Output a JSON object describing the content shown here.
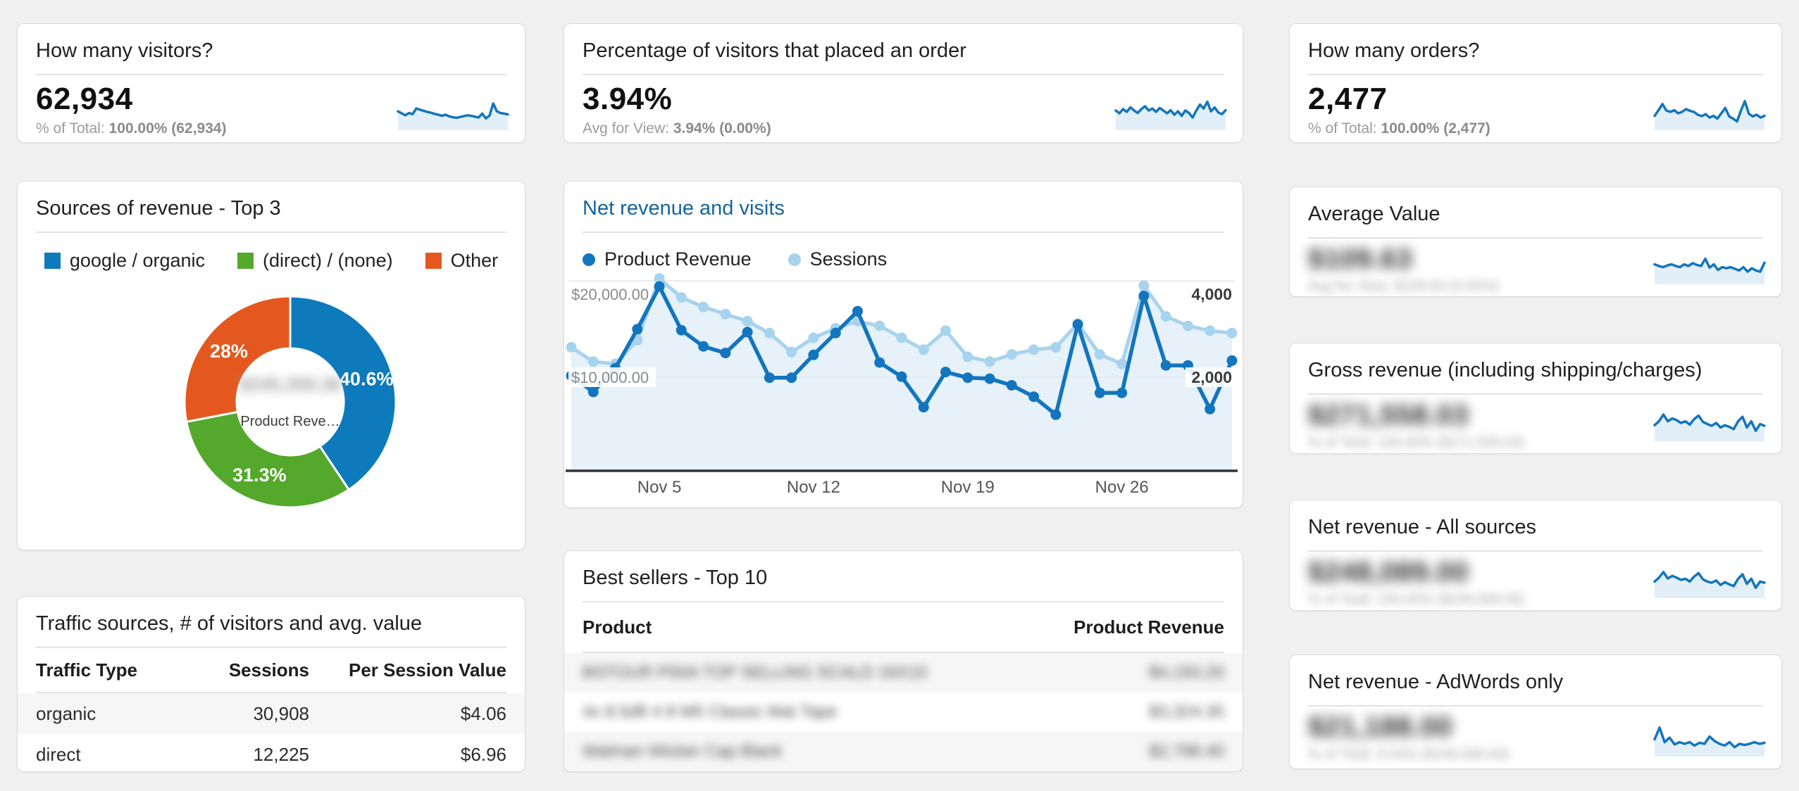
{
  "colors": {
    "background": "#f0f0f0",
    "accent_blue": "#1375bd",
    "light_blue": "#a7d3ed",
    "area_fill": "#ddecf7",
    "link_blue": "#15659d",
    "green": "#54a82b",
    "orange": "#e4581f"
  },
  "cards": {
    "visitors": {
      "title": "How many visitors?",
      "value": "62,934",
      "sub_label": "% of Total:",
      "sub_bold": "100.00% (62,934)",
      "sparkline": [
        0.52,
        0.45,
        0.38,
        0.46,
        0.42,
        0.62,
        0.58,
        0.54,
        0.5,
        0.47,
        0.43,
        0.4,
        0.36,
        0.4,
        0.34,
        0.31,
        0.29,
        0.32,
        0.35,
        0.38,
        0.36,
        0.33,
        0.3,
        0.44,
        0.27,
        0.37,
        0.8,
        0.52,
        0.46,
        0.44,
        0.41
      ]
    },
    "pct_order": {
      "title": "Percentage of visitors that placed an order",
      "value": "3.94%",
      "sub_label": "Avg for View:",
      "sub_bold": "3.94% (0.00%)",
      "sparkline": [
        0.55,
        0.45,
        0.6,
        0.5,
        0.66,
        0.55,
        0.46,
        0.6,
        0.7,
        0.55,
        0.62,
        0.5,
        0.64,
        0.55,
        0.45,
        0.56,
        0.4,
        0.52,
        0.36,
        0.55,
        0.46,
        0.3,
        0.55,
        0.76,
        0.62,
        0.86,
        0.52,
        0.66,
        0.48,
        0.42,
        0.56
      ]
    },
    "orders": {
      "title": "How many orders?",
      "value": "2,477",
      "sub_label": "% of Total:",
      "sub_bold": "100.00% (2,477)",
      "sparkline": [
        0.36,
        0.56,
        0.78,
        0.55,
        0.5,
        0.56,
        0.45,
        0.5,
        0.6,
        0.54,
        0.5,
        0.4,
        0.35,
        0.42,
        0.3,
        0.36,
        0.26,
        0.45,
        0.64,
        0.34,
        0.26,
        0.16,
        0.55,
        0.88,
        0.44,
        0.34,
        0.4,
        0.3,
        0.36
      ]
    },
    "avg_value": {
      "title": "Average Value",
      "blurred": true,
      "value_blurred": "$109.63",
      "sub_blurred": "Avg for View: $109.63 (0.00%)",
      "sparkline": [
        0.56,
        0.5,
        0.46,
        0.52,
        0.56,
        0.5,
        0.46,
        0.56,
        0.5,
        0.6,
        0.54,
        0.5,
        0.76,
        0.44,
        0.56,
        0.36,
        0.46,
        0.42,
        0.46,
        0.4,
        0.34,
        0.46,
        0.3,
        0.42,
        0.34,
        0.3,
        0.62
      ]
    },
    "gross": {
      "title": "Gross revenue (including shipping/charges)",
      "blurred": true,
      "value_blurred": "$271,558.03",
      "sub_blurred": "% of Total: 100.00% ($271,558.03)",
      "sparkline": [
        0.42,
        0.56,
        0.8,
        0.56,
        0.66,
        0.6,
        0.5,
        0.56,
        0.44,
        0.64,
        0.76,
        0.54,
        0.46,
        0.4,
        0.5,
        0.34,
        0.42,
        0.36,
        0.28,
        0.56,
        0.72,
        0.34,
        0.56,
        0.22,
        0.46,
        0.4
      ]
    },
    "net_all": {
      "title": "Net revenue - All sources",
      "blurred": true,
      "value_blurred": "$248,089.00",
      "sub_blurred": "% of Total: 100.00% ($248,089.00)",
      "sparkline": [
        0.44,
        0.58,
        0.78,
        0.55,
        0.64,
        0.58,
        0.5,
        0.54,
        0.44,
        0.62,
        0.74,
        0.52,
        0.44,
        0.4,
        0.48,
        0.32,
        0.42,
        0.34,
        0.28,
        0.54,
        0.7,
        0.36,
        0.54,
        0.22,
        0.44,
        0.4
      ]
    },
    "net_adwords": {
      "title": "Net revenue - AdWords only",
      "blurred": true,
      "value_blurred": "$21,188.00",
      "sub_blurred": "% of Total: 8.54% ($248,089.00)",
      "sparkline": [
        0.46,
        0.88,
        0.36,
        0.52,
        0.28,
        0.36,
        0.3,
        0.36,
        0.24,
        0.34,
        0.3,
        0.56,
        0.4,
        0.3,
        0.24,
        0.36,
        0.18,
        0.3,
        0.26,
        0.3,
        0.36,
        0.3,
        0.34
      ]
    }
  },
  "donut_card": {
    "title": "Sources of revenue - Top 3",
    "legend": [
      {
        "label": "google / organic",
        "color": "#0d7abc"
      },
      {
        "label": "(direct) / (none)",
        "color": "#54a82b"
      },
      {
        "label": "Other",
        "color": "#e4581f"
      }
    ],
    "center_value_blurred": "$245,359.38",
    "center_label": "Product Reve…"
  },
  "main_chart_card": {
    "title": "Net revenue and visits",
    "legend": [
      {
        "label": "Product Revenue",
        "color": "#1375bd"
      },
      {
        "label": "Sessions",
        "color": "#a7d3ed"
      }
    ]
  },
  "traffic_card": {
    "title": "Traffic sources, # of visitors and avg. value",
    "headers": [
      "Traffic Type",
      "Sessions",
      "Per Session Value"
    ],
    "rows": [
      [
        "organic",
        "30,908",
        "$4.06"
      ],
      [
        "direct",
        "12,225",
        "$6.96"
      ]
    ]
  },
  "best_sellers_card": {
    "title": "Best sellers - Top 10",
    "headers": [
      "Product",
      "Product Revenue"
    ],
    "blurred": true,
    "rows_blurred": [
      [
        "BSTOUR P50A TOP SELLING SCALD 16X10",
        "$4,193.20"
      ],
      [
        "4x 8.5dft 4 8 M5 Classic Mat Tape",
        "$3,324.35"
      ],
      [
        "Walman Wicker Cap Black",
        "$2,798.40"
      ]
    ]
  },
  "chart_data": [
    {
      "type": "pie",
      "title": "Sources of revenue - Top 3",
      "labels": [
        "google / organic",
        "(direct) / (none)",
        "Other"
      ],
      "values": [
        40.6,
        31.3,
        28.0
      ],
      "value_labels": [
        "40.6%",
        "31.3%",
        "28%"
      ],
      "colors": [
        "#0d7abc",
        "#54a82b",
        "#e4581f"
      ],
      "donut": true,
      "center_metric": "Product Revenue"
    },
    {
      "type": "line",
      "title": "Net revenue and visits",
      "x_range": "Nov 1 - Dec 1",
      "x_ticks": [
        {
          "i": 4,
          "label": "Nov 5"
        },
        {
          "i": 11,
          "label": "Nov 12"
        },
        {
          "i": 18,
          "label": "Nov 19"
        },
        {
          "i": 25,
          "label": "Nov 26"
        }
      ],
      "ylim_left": [
        0,
        20000
      ],
      "ylim_right": [
        0,
        4000
      ],
      "axis_labels": {
        "left_top": "$20,000.00",
        "left_mid": "$10,000.00",
        "right_top": "4,000",
        "right_mid": "2,000"
      },
      "series": [
        {
          "name": "Product Revenue",
          "axis": "left",
          "color": "#1375bd",
          "values": [
            10000,
            8300,
            10800,
            14900,
            19400,
            14800,
            13100,
            12400,
            14600,
            9800,
            9800,
            12200,
            14500,
            16800,
            11400,
            9900,
            6700,
            10400,
            9800,
            9700,
            9000,
            7800,
            5900,
            15400,
            8200,
            8200,
            18400,
            11100,
            11100,
            6500,
            11600
          ]
        },
        {
          "name": "Sessions",
          "axis": "right",
          "color": "#a7d3ed",
          "values": [
            2600,
            2300,
            2250,
            2750,
            4050,
            3650,
            3450,
            3300,
            3150,
            2900,
            2500,
            2800,
            3000,
            3150,
            3050,
            2800,
            2550,
            2950,
            2400,
            2300,
            2450,
            2550,
            2600,
            3100,
            2450,
            2250,
            3900,
            3250,
            3050,
            2950,
            2900
          ]
        }
      ]
    }
  ]
}
